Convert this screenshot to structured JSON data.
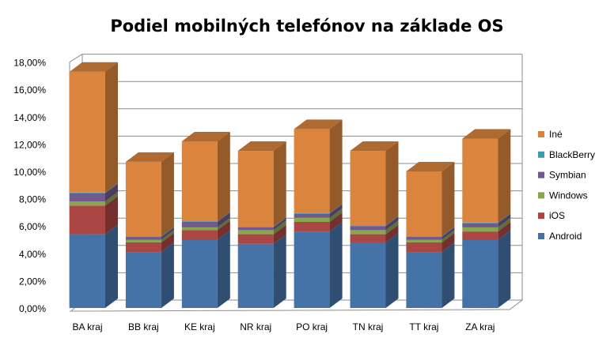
{
  "chart_data": {
    "type": "bar",
    "stacked": true,
    "style": "3d",
    "title": "Podiel mobilných telefónov na základe OS",
    "xlabel": "",
    "ylabel": "",
    "ylim": [
      0,
      18
    ],
    "yticks": [
      "0,00%",
      "2,00%",
      "4,00%",
      "6,00%",
      "8,00%",
      "10,00%",
      "12,00%",
      "14,00%",
      "16,00%",
      "18,00%"
    ],
    "grid": true,
    "legend_position": "right",
    "categories": [
      "BA kraj",
      "BB kraj",
      "KE kraj",
      "NR kraj",
      "PO kraj",
      "TN kraj",
      "TT kraj",
      "ZA kraj"
    ],
    "series": [
      {
        "name": "Android",
        "color": "#4572A7",
        "values": [
          5.4,
          4.1,
          5.0,
          4.7,
          5.6,
          4.8,
          4.1,
          5.0
        ]
      },
      {
        "name": "iOS",
        "color": "#AA4643",
        "values": [
          2.1,
          0.7,
          0.7,
          0.7,
          0.7,
          0.6,
          0.7,
          0.6
        ]
      },
      {
        "name": "Windows",
        "color": "#89A54E",
        "values": [
          0.3,
          0.2,
          0.2,
          0.3,
          0.3,
          0.3,
          0.2,
          0.3
        ]
      },
      {
        "name": "Symbian",
        "color": "#71588F",
        "values": [
          0.6,
          0.2,
          0.4,
          0.2,
          0.3,
          0.3,
          0.2,
          0.3
        ]
      },
      {
        "name": "BlackBerry",
        "color": "#4198AF",
        "values": [
          0.05,
          0.05,
          0.05,
          0.05,
          0.05,
          0.05,
          0.05,
          0.05
        ]
      },
      {
        "name": "Iné",
        "color": "#DB843D",
        "values": [
          8.85,
          5.45,
          5.85,
          5.55,
          6.15,
          5.45,
          4.75,
          6.15
        ]
      }
    ]
  }
}
